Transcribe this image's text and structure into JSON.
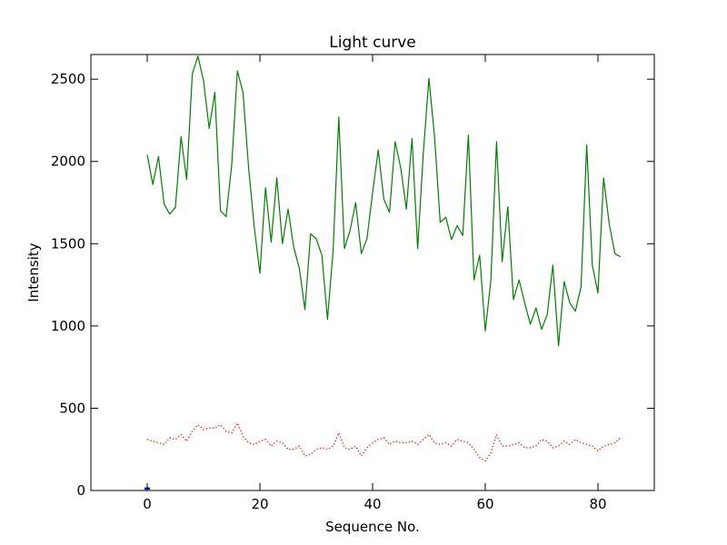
{
  "chart_data": {
    "type": "line",
    "title": "Light curve",
    "xlabel": "Sequence No.",
    "ylabel": "Intensity",
    "xlim": [
      -10,
      90
    ],
    "ylim": [
      0,
      2650
    ],
    "xticks": [
      0,
      20,
      40,
      60,
      80
    ],
    "yticks": [
      0,
      500,
      1000,
      1500,
      2000,
      2500
    ],
    "grid": false,
    "series": [
      {
        "style": "solid",
        "color": "#008000",
        "x": [
          0,
          1,
          2,
          3,
          4,
          5,
          6,
          7,
          8,
          9,
          10,
          11,
          12,
          13,
          14,
          15,
          16,
          17,
          18,
          19,
          20,
          21,
          22,
          23,
          24,
          25,
          26,
          27,
          28,
          29,
          30,
          31,
          32,
          33,
          34,
          35,
          36,
          37,
          38,
          39,
          40,
          41,
          42,
          43,
          44,
          45,
          46,
          47,
          48,
          49,
          50,
          51,
          52,
          53,
          54,
          55,
          56,
          57,
          58,
          59,
          60,
          61,
          62,
          63,
          64,
          65,
          66,
          67,
          68,
          69,
          70,
          71,
          72,
          73,
          74,
          75,
          76,
          77,
          78,
          79,
          80,
          81,
          82,
          83,
          84
        ],
        "values": [
          2040,
          1860,
          2030,
          1740,
          1680,
          1720,
          2150,
          1890,
          2530,
          2640,
          2490,
          2200,
          2420,
          1700,
          1665,
          1980,
          2550,
          2420,
          1960,
          1600,
          1320,
          1840,
          1510,
          1900,
          1500,
          1710,
          1480,
          1350,
          1100,
          1560,
          1530,
          1430,
          1040,
          1460,
          2270,
          1470,
          1580,
          1750,
          1440,
          1530,
          1810,
          2070,
          1770,
          1690,
          2120,
          1960,
          1710,
          2140,
          1470,
          2050,
          2505,
          2150,
          1630,
          1660,
          1525,
          1610,
          1550,
          2160,
          1280,
          1430,
          970,
          1280,
          2120,
          1390,
          1725,
          1160,
          1280,
          1140,
          1010,
          1110,
          980,
          1070,
          1370,
          880,
          1270,
          1140,
          1090,
          1240,
          2100,
          1370,
          1200,
          1900,
          1620,
          1440,
          1420
        ]
      },
      {
        "style": "dotted",
        "color": "#ff0000",
        "x": [
          0,
          1,
          2,
          3,
          4,
          5,
          6,
          7,
          8,
          9,
          10,
          11,
          12,
          13,
          14,
          15,
          16,
          17,
          18,
          19,
          20,
          21,
          22,
          23,
          24,
          25,
          26,
          27,
          28,
          29,
          30,
          31,
          32,
          33,
          34,
          35,
          36,
          37,
          38,
          39,
          40,
          41,
          42,
          43,
          44,
          45,
          46,
          47,
          48,
          49,
          50,
          51,
          52,
          53,
          54,
          55,
          56,
          57,
          58,
          59,
          60,
          61,
          62,
          63,
          64,
          65,
          66,
          67,
          68,
          69,
          70,
          71,
          72,
          73,
          74,
          75,
          76,
          77,
          78,
          79,
          80,
          81,
          82,
          83,
          84
        ],
        "values": [
          310,
          300,
          290,
          280,
          320,
          310,
          340,
          300,
          360,
          400,
          370,
          380,
          380,
          400,
          360,
          350,
          410,
          330,
          290,
          280,
          300,
          310,
          270,
          300,
          290,
          250,
          250,
          270,
          210,
          220,
          250,
          260,
          250,
          270,
          350,
          260,
          250,
          270,
          210,
          260,
          290,
          310,
          320,
          280,
          300,
          290,
          290,
          300,
          280,
          310,
          340,
          290,
          280,
          290,
          270,
          310,
          300,
          290,
          250,
          200,
          180,
          230,
          340,
          270,
          270,
          280,
          290,
          260,
          260,
          270,
          310,
          300,
          260,
          270,
          300,
          280,
          310,
          290,
          280,
          270,
          240,
          270,
          280,
          290,
          320
        ]
      },
      {
        "style": "solid",
        "color": "#0000ff",
        "x": [
          0
        ],
        "values": [
          12
        ]
      }
    ]
  }
}
